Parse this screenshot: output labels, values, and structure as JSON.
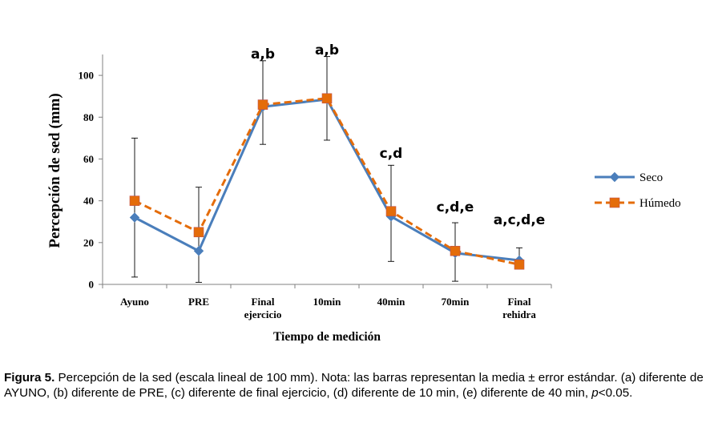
{
  "chart_data": {
    "type": "line",
    "xlabel": "Tiempo de medición",
    "ylabel": "Percepción de sed (mm)",
    "ylim": [
      0,
      110
    ],
    "yticks": [
      "0",
      "20",
      "40",
      "60",
      "80",
      "100"
    ],
    "ytick_values": [
      0,
      20,
      40,
      60,
      80,
      100
    ],
    "categories": [
      [
        "Ayuno"
      ],
      [
        "PRE"
      ],
      [
        "Final",
        "ejercicio"
      ],
      [
        "10min"
      ],
      [
        "40min"
      ],
      [
        "70min"
      ],
      [
        "Final",
        "rehidra"
      ]
    ],
    "series": [
      {
        "name": "Seco",
        "color": "#4a7ebb",
        "marker": "diamond",
        "line": "solid",
        "values": [
          32,
          16,
          85,
          88.5,
          32.5,
          15,
          11.5
        ]
      },
      {
        "name": "Húmedo",
        "color": "#e46c0a",
        "marker": "square",
        "line": "dashed",
        "values": [
          40,
          25,
          86,
          89,
          35,
          16,
          9.5
        ]
      }
    ],
    "error_bars": {
      "upper": [
        70,
        46.5,
        107,
        109,
        57,
        29.5,
        17.5
      ],
      "lower": [
        3.5,
        1,
        67,
        69,
        11,
        1.5,
        9
      ]
    },
    "annotations": [
      "",
      "",
      "a,b",
      "a,b",
      "c,d",
      "c,d,e",
      "a,c,d,e"
    ],
    "legend_position": "right",
    "grid": false
  },
  "caption": {
    "label": "Figura 5.",
    "text": " Percepción de la sed (escala lineal de 100 mm). Nota: las barras representan la media ± error estándar. (a) diferente de AYUNO, (b) diferente de PRE, (c) diferente de final ejercicio, (d) diferente de 10 min, (e) diferente de 40 min, ",
    "p_symbol": "p",
    "p_value": "<0.05."
  }
}
